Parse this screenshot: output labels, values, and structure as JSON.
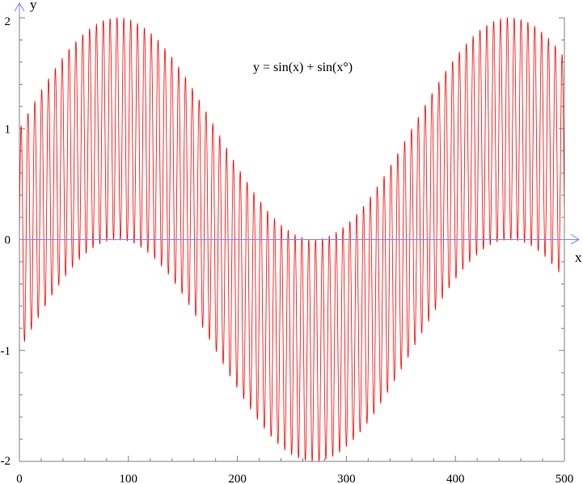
{
  "chart_data": {
    "type": "line",
    "title": "",
    "annotation": "y = sin(x) + sin(x°)",
    "xlabel": "x",
    "ylabel": "y",
    "xlim": [
      0,
      500
    ],
    "ylim": [
      -2,
      2
    ],
    "x_ticks": [
      0,
      100,
      200,
      300,
      400,
      500
    ],
    "x_tick_labels": [
      "0",
      "100",
      "200",
      "300",
      "400",
      "500"
    ],
    "y_ticks": [
      -2,
      -1,
      0,
      1,
      2
    ],
    "y_tick_labels": [
      "-2",
      "-1",
      "0",
      "1",
      "2"
    ],
    "grid": false,
    "series": [
      {
        "expression": "sin(x) + sin(x°)",
        "x_range": [
          0,
          500
        ],
        "color": "#ff0000"
      }
    ]
  },
  "colors": {
    "frame": "#808080",
    "zero_axis": "#8080ff",
    "series": "#ff0000",
    "background": "#ffffff"
  }
}
